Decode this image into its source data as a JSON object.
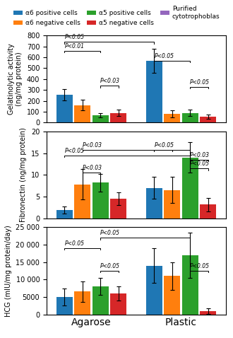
{
  "chart_data": [
    {
      "type": "bar",
      "y_label": "Gelatinolytic activity\n(ng/mg protein)",
      "categories": [
        "Agarose",
        "Plastic"
      ],
      "series": [
        {
          "name": "α6 positive cells",
          "color": "#1f77b4",
          "values": [
            255,
            565
          ],
          "errors": [
            50,
            110
          ]
        },
        {
          "name": "α6 negative cells",
          "color": "#ff7f0e",
          "values": [
            160,
            80
          ],
          "errors": [
            50,
            30
          ]
        },
        {
          "name": "α5 positive cells",
          "color": "#2ca02c",
          "values": [
            65,
            90
          ],
          "errors": [
            20,
            30
          ]
        },
        {
          "name": "α5 negative cells",
          "color": "#d62728",
          "values": [
            90,
            55
          ],
          "errors": [
            30,
            20
          ]
        },
        {
          "name": "Purified\ncytotrophoblas",
          "color": "#9467bd",
          "values": [
            null,
            null
          ],
          "errors": [
            null,
            null
          ]
        }
      ],
      "ylim": [
        0,
        800
      ],
      "yticks": [
        0,
        100,
        200,
        300,
        400,
        500,
        600,
        700,
        800
      ],
      "tick_labels": "y",
      "legend": "upper center",
      "annotations": [
        {
          "text": "P<0.05",
          "from": [
            "Agarose",
            "α6 positive cells"
          ],
          "to": [
            "Plastic",
            "α6 positive cells"
          ],
          "y": 740
        },
        {
          "text": "P<0.01",
          "from": [
            "Agarose",
            "α6 positive cells"
          ],
          "to": [
            "Agarose",
            "α5 positive cells"
          ],
          "y": 660
        },
        {
          "text": "P<0.03",
          "from": [
            "Agarose",
            "α5 positive cells"
          ],
          "to": [
            "Agarose",
            "α5 negative cells"
          ],
          "y": 340
        },
        {
          "text": "P<0.05",
          "from": [
            "Plastic",
            "α6 positive cells"
          ],
          "to": [
            "Plastic",
            "α5 positive cells"
          ],
          "y": 570
        },
        {
          "text": "P<0.05",
          "from": [
            "Plastic",
            "α5 positive cells"
          ],
          "to": [
            "Plastic",
            "α5 negative cells"
          ],
          "y": 330
        }
      ]
    },
    {
      "type": "bar",
      "y_label": "Fibronectin (ng/mg protein)",
      "categories": [
        "Agarose",
        "Plastic"
      ],
      "series": [
        {
          "name": "α6 positive cells",
          "color": "#1f77b4",
          "values": [
            2.0,
            7.0
          ],
          "errors": [
            0.8,
            2.5
          ]
        },
        {
          "name": "α6 negative cells",
          "color": "#ff7f0e",
          "values": [
            7.8,
            6.5
          ],
          "errors": [
            3.5,
            3.0
          ]
        },
        {
          "name": "α5 positive cells",
          "color": "#2ca02c",
          "values": [
            8.2,
            14.0
          ],
          "errors": [
            2.0,
            3.5
          ]
        },
        {
          "name": "α5 negative cells",
          "color": "#d62728",
          "values": [
            4.5,
            3.2
          ],
          "errors": [
            1.5,
            1.5
          ]
        },
        {
          "name": "Purified\ncytotrophoblas",
          "color": "#9467bd",
          "values": [
            null,
            null
          ],
          "errors": [
            null,
            null
          ]
        }
      ],
      "ylim": [
        0,
        20
      ],
      "yticks": [
        0,
        5,
        10,
        15,
        20
      ],
      "tick_labels": "y",
      "annotations": [
        {
          "text": "P<0.03",
          "from": [
            "Agarose",
            "α6 negative cells"
          ],
          "to": [
            "Plastic",
            "α6 negative cells"
          ],
          "y": 15.8
        },
        {
          "text": "P<0.05",
          "from": [
            "Agarose",
            "α6 positive cells"
          ],
          "to": [
            "Plastic",
            "α5 positive cells"
          ],
          "y": 14.5
        },
        {
          "text": "P<0.03",
          "from": [
            "Agarose",
            "α6 negative cells"
          ],
          "to": [
            "Agarose",
            "α5 positive cells"
          ],
          "y": 10.5
        },
        {
          "text": "P<0.05",
          "from": [
            "Plastic",
            "α6 positive cells"
          ],
          "to": [
            "Plastic",
            "α5 positive cells"
          ],
          "y": 15.8
        },
        {
          "text": "P<0.03",
          "from": [
            "Plastic",
            "α5 positive cells"
          ],
          "to": [
            "Plastic",
            "α5 negative cells"
          ],
          "y": 13.5
        },
        {
          "text": "P<0.05",
          "from": [
            "Plastic",
            "α5 positive cells"
          ],
          "to": [
            "Plastic",
            "α5 negative cells"
          ],
          "y": 11.5
        }
      ]
    },
    {
      "type": "bar",
      "y_label": "HCG (mIU/mg protein/day)",
      "categories": [
        "Agarose",
        "Plastic"
      ],
      "series": [
        {
          "name": "α6 positive cells",
          "color": "#1f77b4",
          "values": [
            5000,
            14000
          ],
          "errors": [
            2500,
            5000
          ]
        },
        {
          "name": "α6 negative cells",
          "color": "#ff7f0e",
          "values": [
            6500,
            11000
          ],
          "errors": [
            3000,
            4000
          ]
        },
        {
          "name": "α5 positive cells",
          "color": "#2ca02c",
          "values": [
            8000,
            17000
          ],
          "errors": [
            2500,
            6500
          ]
        },
        {
          "name": "α5 negative cells",
          "color": "#d62728",
          "values": [
            6000,
            1000
          ],
          "errors": [
            2000,
            800
          ]
        },
        {
          "name": "Purified\ncytotrophoblas",
          "color": "#9467bd",
          "values": [
            null,
            null
          ],
          "errors": [
            null,
            null
          ]
        }
      ],
      "ylim": [
        0,
        25000
      ],
      "yticks": [
        0,
        5000,
        {
          "value": 10000,
          "label": "10 000"
        },
        {
          "value": 15000,
          "label": "15 000"
        },
        {
          "value": 20000,
          "label": "20 000"
        },
        {
          "value": 25000,
          "label": "25 000"
        }
      ],
      "annotations": [
        {
          "text": "P<0.05",
          "from": [
            "Agarose",
            "α5 positive cells"
          ],
          "to": [
            "Plastic",
            "α5 positive cells"
          ],
          "y": 22000
        },
        {
          "text": "P<0.05",
          "from": [
            "Agarose",
            "α6 positive cells"
          ],
          "to": [
            "Agarose",
            "α5 positive cells"
          ],
          "y": 19000
        },
        {
          "text": "P<0.05",
          "from": [
            "Agarose",
            "α5 positive cells"
          ],
          "to": [
            "Agarose",
            "α5 negative cells"
          ],
          "y": 12500
        },
        {
          "text": "P<0.05",
          "from": [
            "Plastic",
            "α5 positive cells"
          ],
          "to": [
            "Plastic",
            "α5 negative cells"
          ],
          "y": 12500
        }
      ]
    }
  ]
}
